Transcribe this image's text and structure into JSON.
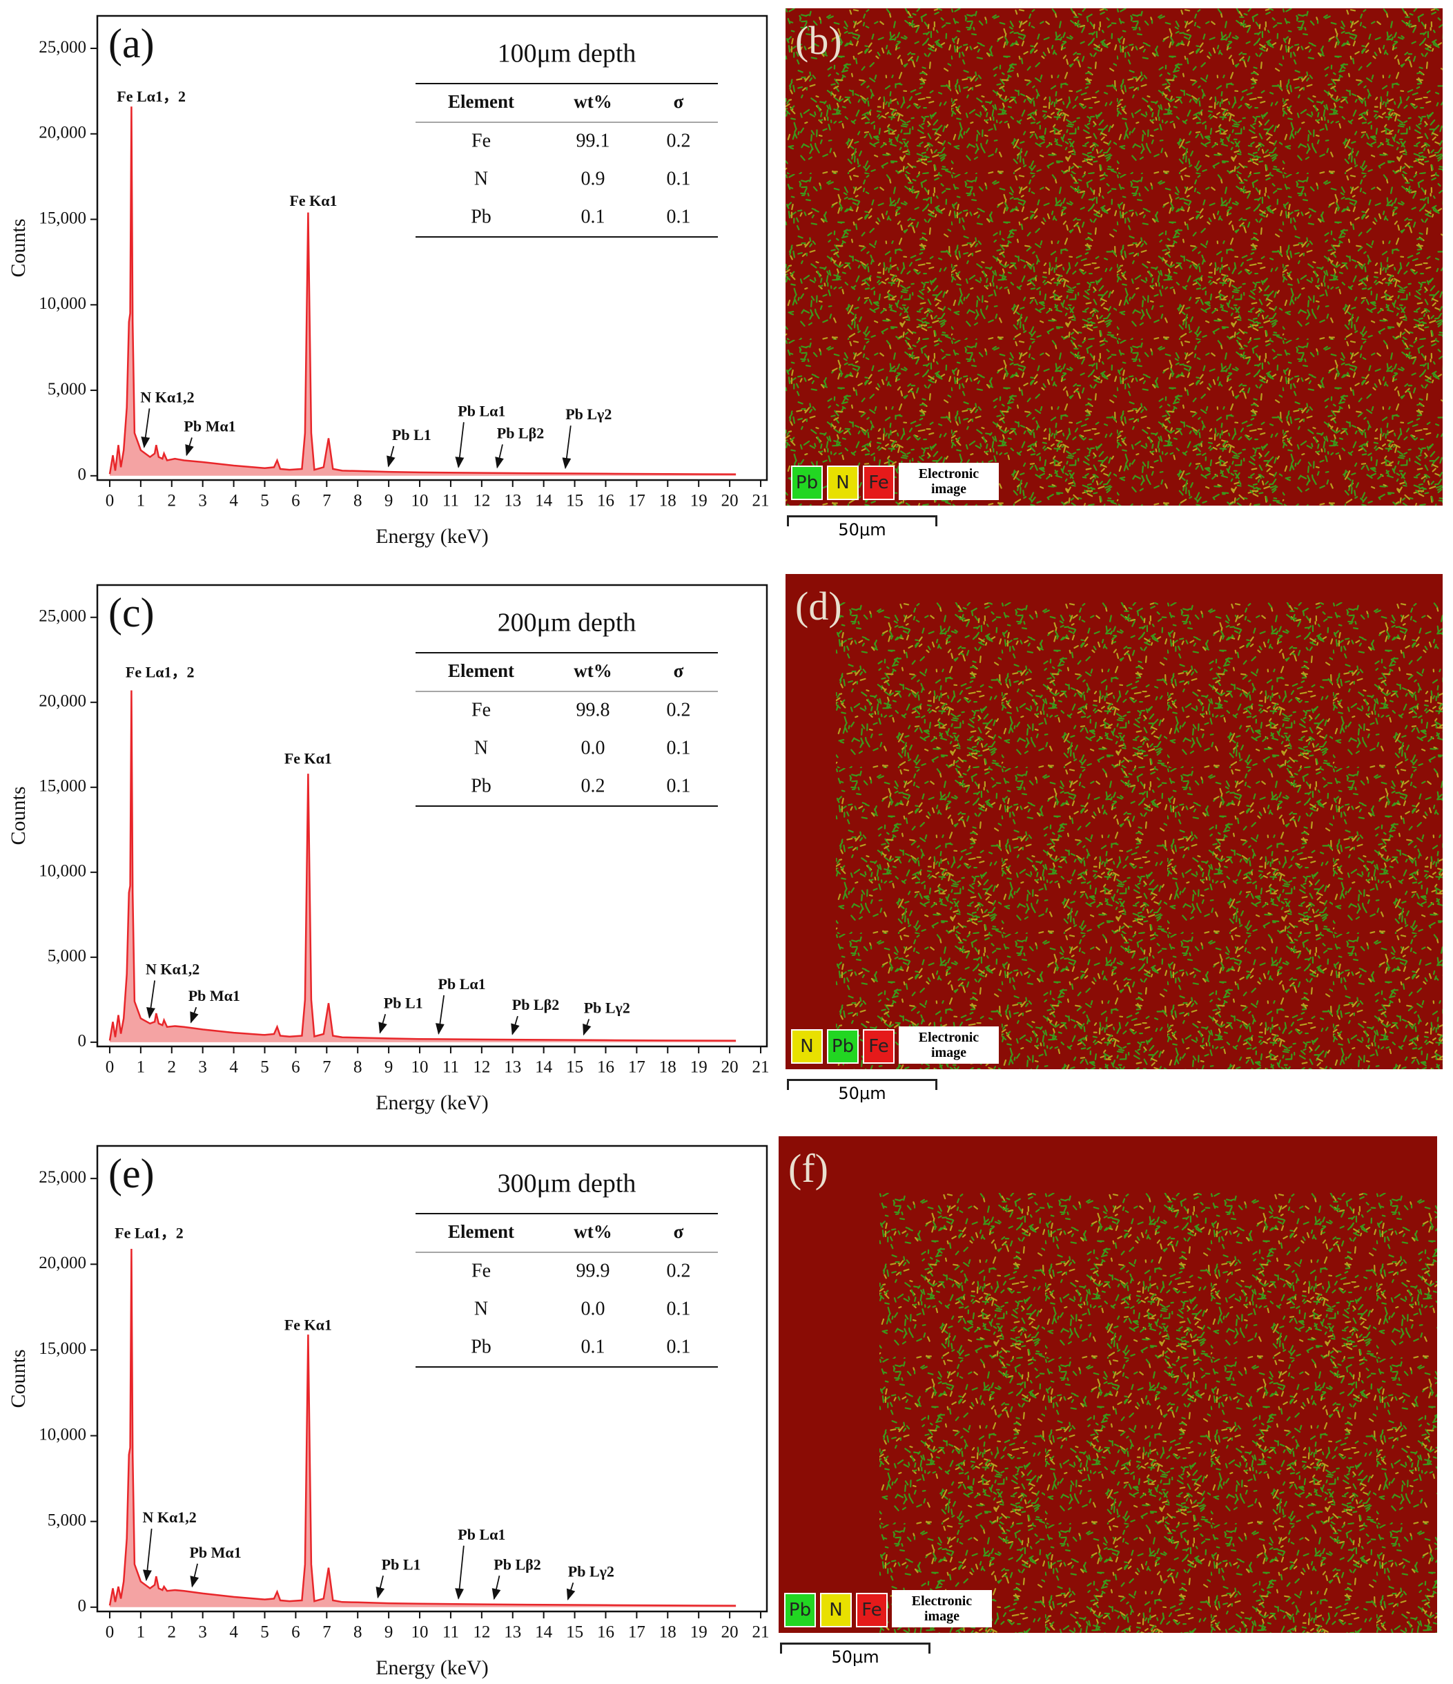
{
  "chart_data": [
    {
      "type": "line",
      "label": "(a)",
      "x_label": "Energy (keV)",
      "y_label": "Counts",
      "color": "#e8262a",
      "fill_color": "#f4a3a3",
      "x": [
        0,
        0.1,
        0.18,
        0.28,
        0.36,
        0.45,
        0.55,
        0.62,
        0.66,
        0.7,
        0.74,
        0.8,
        1.0,
        1.3,
        1.45,
        1.5,
        1.58,
        1.7,
        1.75,
        1.85,
        2.1,
        2.4,
        3,
        4,
        5,
        5.3,
        5.4,
        5.5,
        5.8,
        6.2,
        6.3,
        6.4,
        6.5,
        6.6,
        6.9,
        7.06,
        7.2,
        7.5,
        8,
        9,
        10,
        12,
        14,
        16,
        18,
        20.2
      ],
      "values": [
        100,
        1200,
        300,
        1800,
        500,
        1500,
        4000,
        9000,
        9500,
        21600,
        9000,
        2500,
        1500,
        1100,
        1300,
        1800,
        1100,
        1000,
        1300,
        900,
        1000,
        900,
        800,
        600,
        450,
        500,
        900,
        400,
        350,
        400,
        2500,
        15400,
        2500,
        350,
        500,
        2200,
        400,
        300,
        280,
        230,
        200,
        170,
        140,
        120,
        100,
        90
      ],
      "xlim": [
        -0.4,
        21.2
      ],
      "ylim": [
        -250,
        26900
      ],
      "xticks": [
        0,
        1,
        2,
        3,
        4,
        5,
        6,
        7,
        8,
        9,
        10,
        11,
        12,
        13,
        14,
        15,
        16,
        17,
        18,
        19,
        20,
        21
      ],
      "yticks": [
        0,
        {
          "value": 5000,
          "label": "5,000"
        },
        {
          "value": 10000,
          "label": "10,000"
        },
        {
          "value": 15000,
          "label": "15,000"
        },
        {
          "value": 20000,
          "label": "20,000"
        },
        {
          "value": 25000,
          "label": "25,000"
        }
      ],
      "annotations": [
        {
          "text": "Fe Lα1，2",
          "x": 1.34,
          "y": 22100,
          "arrow": false
        },
        {
          "text": "Fe Kα1",
          "x": 6.57,
          "y": 16000,
          "arrow": false
        },
        {
          "text": "N Kα1,2",
          "x": 1.86,
          "y": 4500,
          "arrow": true
        },
        {
          "text": "Pb Mα1",
          "x": 3.23,
          "y": 2800,
          "arrow": true
        },
        {
          "text": "Pb L1",
          "x": 9.74,
          "y": 2300,
          "arrow": true
        },
        {
          "text": "Pb Lα1",
          "x": 12.0,
          "y": 3700,
          "arrow": true
        },
        {
          "text": "Pb Lβ2",
          "x": 13.25,
          "y": 2400,
          "arrow": true
        },
        {
          "text": "Pb Lγ2",
          "x": 15.45,
          "y": 3500,
          "arrow": true
        }
      ],
      "table": {
        "title": "100μm depth",
        "columns": [
          "Element",
          "wt%",
          "σ"
        ],
        "rows": [
          [
            "Fe",
            "99.1",
            "0.2"
          ],
          [
            "N",
            "0.9",
            "0.1"
          ],
          [
            "Pb",
            "0.1",
            "0.1"
          ]
        ]
      }
    },
    {
      "type": "line",
      "label": "(c)",
      "x_label": "Energy (keV)",
      "y_label": "Counts",
      "color": "#e8262a",
      "fill_color": "#f4a3a3",
      "x": [
        0,
        0.1,
        0.18,
        0.28,
        0.36,
        0.45,
        0.55,
        0.62,
        0.66,
        0.7,
        0.74,
        0.8,
        1.0,
        1.3,
        1.45,
        1.5,
        1.58,
        1.7,
        1.75,
        1.85,
        2.1,
        2.4,
        3,
        4,
        5,
        5.3,
        5.4,
        5.5,
        5.8,
        6.2,
        6.3,
        6.4,
        6.5,
        6.6,
        6.9,
        7.06,
        7.2,
        7.5,
        8,
        9,
        10,
        12,
        14,
        16,
        18,
        20.2
      ],
      "values": [
        100,
        1200,
        300,
        1600,
        500,
        1400,
        4000,
        8800,
        9200,
        20700,
        8800,
        2400,
        1400,
        1100,
        1200,
        1700,
        1100,
        1000,
        1300,
        900,
        950,
        900,
        750,
        560,
        430,
        480,
        900,
        380,
        330,
        380,
        2500,
        15800,
        2500,
        340,
        480,
        2300,
        380,
        290,
        270,
        220,
        190,
        160,
        140,
        120,
        100,
        90
      ],
      "xlim": [
        -0.4,
        21.2
      ],
      "ylim": [
        -250,
        26900
      ],
      "xticks": [
        0,
        1,
        2,
        3,
        4,
        5,
        6,
        7,
        8,
        9,
        10,
        11,
        12,
        13,
        14,
        15,
        16,
        17,
        18,
        19,
        20,
        21
      ],
      "yticks": [
        0,
        {
          "value": 5000,
          "label": "5,000"
        },
        {
          "value": 10000,
          "label": "10,000"
        },
        {
          "value": 15000,
          "label": "15,000"
        },
        {
          "value": 20000,
          "label": "20,000"
        },
        {
          "value": 25000,
          "label": "25,000"
        }
      ],
      "annotations": [
        {
          "text": "Fe Lα1，2",
          "x": 1.62,
          "y": 21670,
          "arrow": false
        },
        {
          "text": "Fe Kα1",
          "x": 6.4,
          "y": 16590,
          "arrow": false
        },
        {
          "text": "N Kα1,2",
          "x": 2.03,
          "y": 4200,
          "arrow": true
        },
        {
          "text": "Pb Mα1",
          "x": 3.37,
          "y": 2630,
          "arrow": true
        },
        {
          "text": "Pb L1",
          "x": 9.47,
          "y": 2220,
          "arrow": true
        },
        {
          "text": "Pb Lα1",
          "x": 11.36,
          "y": 3330,
          "arrow": true
        },
        {
          "text": "Pb Lβ2",
          "x": 13.74,
          "y": 2100,
          "arrow": true
        },
        {
          "text": "Pb Lγ2",
          "x": 16.04,
          "y": 1930,
          "arrow": true
        }
      ],
      "table": {
        "title": "200μm depth",
        "columns": [
          "Element",
          "wt%",
          "σ"
        ],
        "rows": [
          [
            "Fe",
            "99.8",
            "0.2"
          ],
          [
            "N",
            "0.0",
            "0.1"
          ],
          [
            "Pb",
            "0.2",
            "0.1"
          ]
        ]
      }
    },
    {
      "type": "line",
      "label": "(e)",
      "x_label": "Energy (keV)",
      "y_label": "Counts",
      "color": "#e8262a",
      "fill_color": "#f4a3a3",
      "x": [
        0,
        0.1,
        0.18,
        0.28,
        0.36,
        0.45,
        0.55,
        0.62,
        0.66,
        0.7,
        0.74,
        0.8,
        1.0,
        1.3,
        1.45,
        1.5,
        1.58,
        1.7,
        1.75,
        1.85,
        2.1,
        2.4,
        3,
        4,
        5,
        5.3,
        5.4,
        5.5,
        5.8,
        6.2,
        6.3,
        6.4,
        6.5,
        6.6,
        6.9,
        7.06,
        7.2,
        7.5,
        8,
        9,
        10,
        12,
        14,
        16,
        18,
        20.2
      ],
      "values": [
        100,
        1100,
        300,
        1200,
        500,
        1500,
        4000,
        8900,
        9300,
        20900,
        8900,
        2500,
        1500,
        1100,
        1300,
        1800,
        1100,
        1000,
        1200,
        950,
        1000,
        950,
        800,
        600,
        450,
        500,
        900,
        400,
        350,
        400,
        2500,
        15900,
        2500,
        350,
        500,
        2300,
        400,
        300,
        280,
        230,
        200,
        170,
        140,
        120,
        100,
        90
      ],
      "xlim": [
        -0.4,
        21.2
      ],
      "ylim": [
        -250,
        26900
      ],
      "xticks": [
        0,
        1,
        2,
        3,
        4,
        5,
        6,
        7,
        8,
        9,
        10,
        11,
        12,
        13,
        14,
        15,
        16,
        17,
        18,
        19,
        20,
        21
      ],
      "yticks": [
        0,
        {
          "value": 5000,
          "label": "5,000"
        },
        {
          "value": 10000,
          "label": "10,000"
        },
        {
          "value": 15000,
          "label": "15,000"
        },
        {
          "value": 20000,
          "label": "20,000"
        },
        {
          "value": 25000,
          "label": "25,000"
        }
      ],
      "annotations": [
        {
          "text": "Fe Lα1，2",
          "x": 1.27,
          "y": 21730,
          "arrow": false
        },
        {
          "text": "Fe Kα1",
          "x": 6.4,
          "y": 16360,
          "arrow": false
        },
        {
          "text": "N Kα1,2",
          "x": 1.93,
          "y": 5140,
          "arrow": true
        },
        {
          "text": "Pb Mα1",
          "x": 3.41,
          "y": 3100,
          "arrow": true
        },
        {
          "text": "Pb L1",
          "x": 9.4,
          "y": 2400,
          "arrow": true
        },
        {
          "text": "Pb Lα1",
          "x": 12.0,
          "y": 4150,
          "arrow": true
        },
        {
          "text": "Pb Lβ2",
          "x": 13.15,
          "y": 2400,
          "arrow": true
        },
        {
          "text": "Pb Lγ2",
          "x": 15.53,
          "y": 1990,
          "arrow": true
        }
      ],
      "table": {
        "title": "300μm depth",
        "columns": [
          "Element",
          "wt%",
          "σ"
        ],
        "rows": [
          [
            "Fe",
            "99.9",
            "0.2"
          ],
          [
            "N",
            "0.0",
            "0.1"
          ],
          [
            "Pb",
            "0.1",
            "0.1"
          ]
        ]
      }
    }
  ],
  "maps": [
    {
      "label": "(b)",
      "legend": [
        {
          "name": "Pb",
          "color": "#22d622"
        },
        {
          "name": "N",
          "color": "#e8e000"
        },
        {
          "name": "Fe",
          "color": "#e51a1a"
        }
      ],
      "image_label": "Electronic image",
      "scale_bar": "50μm"
    },
    {
      "label": "(d)",
      "legend": [
        {
          "name": "N",
          "color": "#e8e000"
        },
        {
          "name": "Pb",
          "color": "#22d622"
        },
        {
          "name": "Fe",
          "color": "#e51a1a"
        }
      ],
      "image_label": "Electronic image",
      "scale_bar": "50μm"
    },
    {
      "label": "(f)",
      "legend": [
        {
          "name": "Pb",
          "color": "#22d622"
        },
        {
          "name": "N",
          "color": "#e8e000"
        },
        {
          "name": "Fe",
          "color": "#e51a1a"
        }
      ],
      "image_label": "Electronic image",
      "scale_bar": "50μm"
    }
  ]
}
